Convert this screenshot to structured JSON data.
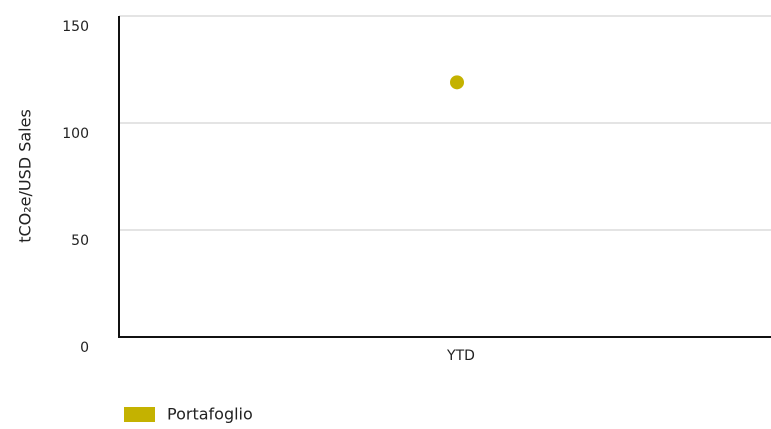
{
  "chart_data": {
    "type": "scatter",
    "y_label": "tCO₂e/USD Sales",
    "categories": [
      "YTD"
    ],
    "series": [
      {
        "name": "Portafoglio",
        "color": "#c4b200",
        "values": [
          119
        ]
      }
    ],
    "ylim": [
      0,
      150
    ],
    "yticks": [
      0,
      50,
      100,
      150
    ],
    "grid": true,
    "legend": "bottom-left"
  }
}
